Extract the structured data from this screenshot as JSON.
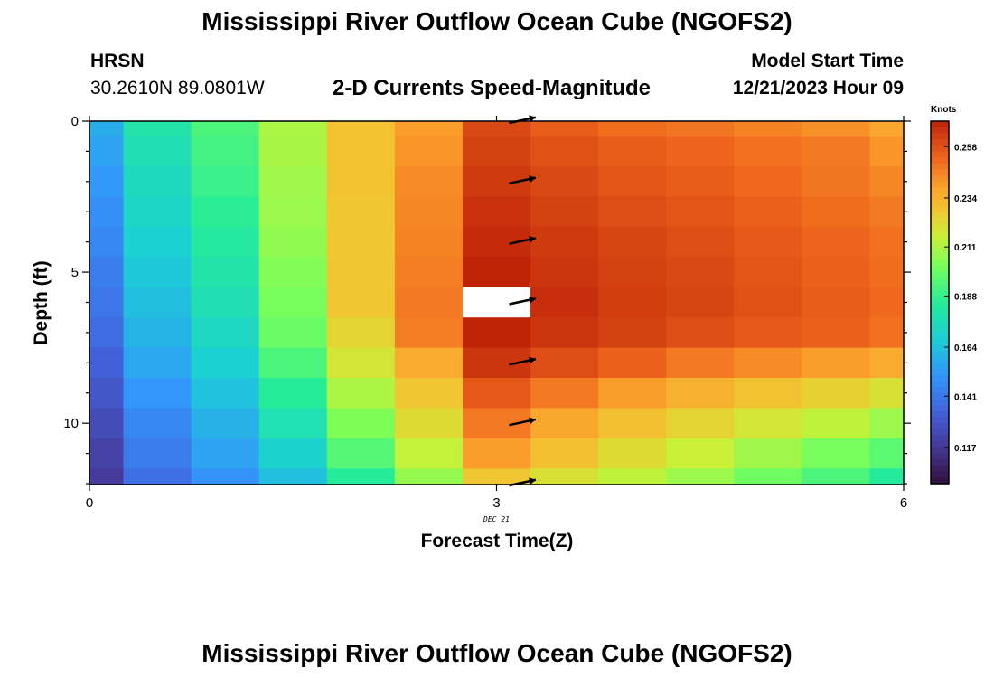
{
  "header": {
    "title": "Mississippi River Outflow Ocean Cube (NGOFS2)",
    "station": "HRSN",
    "coordinates": "30.2610N  89.0801W",
    "subtitle": "2-D Currents Speed-Magnitude",
    "model_start_label": "Model Start Time",
    "model_start_value": "12/21/2023 Hour 09"
  },
  "footer": {
    "title": "Mississippi River Outflow Ocean Cube (NGOFS2)"
  },
  "chart_data": {
    "type": "heatmap",
    "title": "2-D Currents Speed-Magnitude",
    "xlabel": "Forecast Time(Z)",
    "ylabel": "Depth (ft)",
    "xlim": [
      0,
      6
    ],
    "ylim": [
      12,
      0
    ],
    "x_ticks": [
      "0",
      "3",
      "6"
    ],
    "y_ticks": [
      "0",
      "5",
      "10"
    ],
    "x_date_label": "DEC 21",
    "x_date_at": 3,
    "x_edges": [
      0,
      0.25,
      0.75,
      1.25,
      1.75,
      2.25,
      2.75,
      3.25,
      3.75,
      4.25,
      4.75,
      5.25,
      5.75,
      6
    ],
    "y_edges": [
      0,
      0.5,
      1.5,
      2.5,
      3.5,
      4.5,
      5.5,
      6.5,
      7.5,
      8.5,
      9.5,
      10.5,
      11.5,
      12
    ],
    "values": [
      [
        0.158,
        0.18,
        0.193,
        0.211,
        0.229,
        0.24,
        0.26,
        0.255,
        0.251,
        0.249,
        0.246,
        0.243,
        0.238
      ],
      [
        0.155,
        0.177,
        0.191,
        0.21,
        0.229,
        0.242,
        0.262,
        0.258,
        0.255,
        0.253,
        0.25,
        0.248,
        0.242
      ],
      [
        0.152,
        0.174,
        0.189,
        0.209,
        0.229,
        0.244,
        0.264,
        0.26,
        0.257,
        0.255,
        0.252,
        0.249,
        0.245
      ],
      [
        0.149,
        0.172,
        0.186,
        0.208,
        0.228,
        0.245,
        0.266,
        0.262,
        0.259,
        0.257,
        0.254,
        0.251,
        0.248
      ],
      [
        0.146,
        0.169,
        0.183,
        0.206,
        0.228,
        0.246,
        0.268,
        0.264,
        0.261,
        0.259,
        0.256,
        0.253,
        0.25
      ],
      [
        0.143,
        0.166,
        0.18,
        0.204,
        0.228,
        0.247,
        0.27,
        0.265,
        0.262,
        0.26,
        0.257,
        0.254,
        0.251
      ],
      [
        0.14,
        0.163,
        0.177,
        0.202,
        0.228,
        0.248,
        null,
        0.267,
        0.263,
        0.261,
        0.258,
        0.255,
        0.252
      ],
      [
        0.137,
        0.16,
        0.173,
        0.199,
        0.224,
        0.247,
        0.27,
        0.265,
        0.262,
        0.259,
        0.256,
        0.254,
        0.25
      ],
      [
        0.133,
        0.156,
        0.169,
        0.193,
        0.219,
        0.236,
        0.265,
        0.259,
        0.254,
        0.248,
        0.244,
        0.24,
        0.236
      ],
      [
        0.129,
        0.151,
        0.164,
        0.185,
        0.211,
        0.228,
        0.256,
        0.248,
        0.24,
        0.234,
        0.229,
        0.225,
        0.22
      ],
      [
        0.125,
        0.146,
        0.159,
        0.178,
        0.203,
        0.222,
        0.248,
        0.237,
        0.23,
        0.224,
        0.219,
        0.214,
        0.208
      ],
      [
        0.121,
        0.142,
        0.155,
        0.17,
        0.195,
        0.215,
        0.24,
        0.23,
        0.222,
        0.216,
        0.209,
        0.202,
        0.196
      ],
      [
        0.118,
        0.138,
        0.15,
        0.163,
        0.185,
        0.207,
        0.228,
        0.22,
        0.214,
        0.208,
        0.2,
        0.193,
        0.184
      ]
    ],
    "vectors": {
      "x": 3.1,
      "depths": [
        0,
        2,
        4,
        6,
        8,
        10,
        12
      ],
      "direction_deg": 12
    },
    "colorbar": {
      "label": "Knots",
      "min": 0.1,
      "max": 0.27,
      "ticks": [
        "0.117",
        "0.141",
        "0.164",
        "0.188",
        "0.211",
        "0.234",
        "0.258"
      ],
      "tick_values": [
        0.117,
        0.141,
        0.164,
        0.188,
        0.211,
        0.234,
        0.258
      ]
    }
  }
}
